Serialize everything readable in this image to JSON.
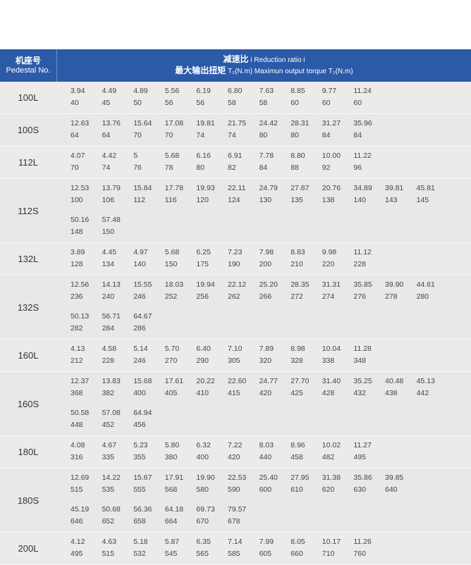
{
  "header": {
    "pedestal_cn": "机座号",
    "pedestal_en": "Pedestal No.",
    "ratio_cn": "减速比",
    "ratio_en": "i Reduction ratio i",
    "torque_cn": "最大输出扭矩",
    "torque_en": "T₂(N.m) Maximun output torque T₂(N.m)"
  },
  "colors": {
    "header_bg": "#2a5aa8",
    "row_bg": "#ecebe9"
  },
  "rows": [
    {
      "pedestal": "100L",
      "subrows": [
        {
          "ratios": [
            "3.94",
            "4.49",
            "4.89",
            "5.56",
            "6.19",
            "6.80",
            "7.63",
            "8.85",
            "9.77",
            "11.24"
          ],
          "torques": [
            "40",
            "45",
            "50",
            "56",
            "56",
            "58",
            "58",
            "60",
            "60",
            "60"
          ]
        }
      ]
    },
    {
      "pedestal": "100S",
      "subrows": [
        {
          "ratios": [
            "12.63",
            "13.76",
            "15.64",
            "17.08",
            "19.81",
            "21.75",
            "24.42",
            "28.31",
            "31.27",
            "35.96"
          ],
          "torques": [
            "64",
            "64",
            "70",
            "70",
            "74",
            "74",
            "80",
            "80",
            "84",
            "84"
          ]
        }
      ]
    },
    {
      "pedestal": "112L",
      "subrows": [
        {
          "ratios": [
            "4.07",
            "4.42",
            "5",
            "5.68",
            "6.16",
            "6.91",
            "7.78",
            "8.80",
            "10.00",
            "11.22"
          ],
          "torques": [
            "70",
            "74",
            "76",
            "78",
            "80",
            "82",
            "84",
            "88",
            "92",
            "96"
          ]
        }
      ]
    },
    {
      "pedestal": "112S",
      "subrows": [
        {
          "ratios": [
            "12.53",
            "13.79",
            "15.84",
            "17.78",
            "19.93",
            "22.11",
            "24.79",
            "27.87",
            "20.76",
            "34.89",
            "39.81",
            "45.81"
          ],
          "torques": [
            "100",
            "106",
            "112",
            "116",
            "120",
            "124",
            "130",
            "135",
            "138",
            "140",
            "143",
            "145"
          ]
        },
        {
          "ratios": [
            "50.16",
            "57.48"
          ],
          "torques": [
            "148",
            "150"
          ]
        }
      ]
    },
    {
      "pedestal": "132L",
      "subrows": [
        {
          "ratios": [
            "3.89",
            "4.45",
            "4.97",
            "5.68",
            "6.25",
            "7.23",
            "7.98",
            "8.83",
            "9.98",
            "11.12"
          ],
          "torques": [
            "128",
            "134",
            "140",
            "150",
            "175",
            "190",
            "200",
            "210",
            "220",
            "228"
          ]
        }
      ]
    },
    {
      "pedestal": "132S",
      "subrows": [
        {
          "ratios": [
            "12.56",
            "14.13",
            "15.55",
            "18.03",
            "19.94",
            "22.12",
            "25.20",
            "28.35",
            "31.31",
            "35.85",
            "39.90",
            "44.61"
          ],
          "torques": [
            "236",
            "240",
            "246",
            "252",
            "256",
            "262",
            "266",
            "272",
            "274",
            "276",
            "278",
            "280"
          ]
        },
        {
          "ratios": [
            "50.13",
            "56.71",
            "64.67"
          ],
          "torques": [
            "282",
            "284",
            "286"
          ]
        }
      ]
    },
    {
      "pedestal": "160L",
      "subrows": [
        {
          "ratios": [
            "4.13",
            "4.58",
            "5.14",
            "5.70",
            "6.40",
            "7.10",
            "7.89",
            "8.98",
            "10.04",
            "11.28"
          ],
          "torques": [
            "212",
            "228",
            "246",
            "270",
            "290",
            "305",
            "320",
            "328",
            "338",
            "348"
          ]
        }
      ]
    },
    {
      "pedestal": "160S",
      "subrows": [
        {
          "ratios": [
            "12.37",
            "13.83",
            "15.68",
            "17.61",
            "20.22",
            "22.60",
            "24.77",
            "27.70",
            "31.40",
            "35.25",
            "40.48",
            "45.13"
          ],
          "torques": [
            "368",
            "382",
            "400",
            "405",
            "410",
            "415",
            "420",
            "425",
            "428",
            "432",
            "438",
            "442"
          ]
        },
        {
          "ratios": [
            "50.58",
            "57.08",
            "64.94"
          ],
          "torques": [
            "448",
            "452",
            "456"
          ]
        }
      ]
    },
    {
      "pedestal": "180L",
      "subrows": [
        {
          "ratios": [
            "4.08",
            "4.67",
            "5.23",
            "5.80",
            "6.32",
            "7.22",
            "8.03",
            "8.96",
            "10.02",
            "11.27"
          ],
          "torques": [
            "316",
            "335",
            "355",
            "380",
            "400",
            "420",
            "440",
            "458",
            "482",
            "495"
          ]
        }
      ]
    },
    {
      "pedestal": "180S",
      "subrows": [
        {
          "ratios": [
            "12.69",
            "14.22",
            "15.67",
            "17.91",
            "19.90",
            "22.53",
            "25.40",
            "27.95",
            "31.38",
            "35.86",
            "39.85"
          ],
          "torques": [
            "515",
            "535",
            "555",
            "568",
            "580",
            "590",
            "600",
            "610",
            "620",
            "630",
            "640"
          ]
        },
        {
          "ratios": [
            "45.19",
            "50.68",
            "56.36",
            "64.18",
            "69.73",
            "79.57"
          ],
          "torques": [
            "646",
            "652",
            "658",
            "664",
            "670",
            "678"
          ]
        }
      ]
    },
    {
      "pedestal": "200L",
      "subrows": [
        {
          "ratios": [
            "4.12",
            "4.63",
            "5.18",
            "5.87",
            "6.35",
            "7.14",
            "7.99",
            "8.05",
            "10.17",
            "11.26"
          ],
          "torques": [
            "495",
            "515",
            "532",
            "545",
            "565",
            "585",
            "605",
            "660",
            "710",
            "760"
          ]
        }
      ]
    }
  ]
}
